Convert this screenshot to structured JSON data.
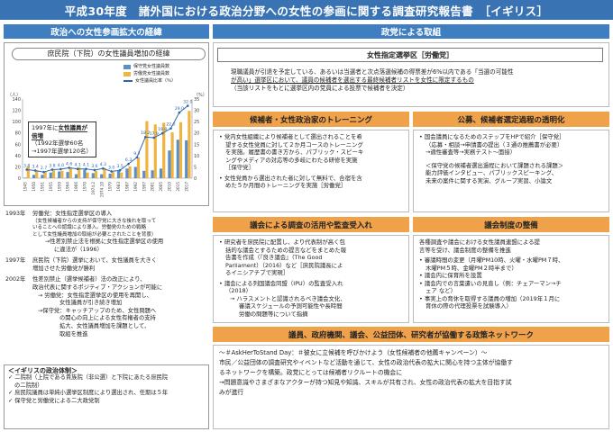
{
  "title": "平成30年度　諸外国における政治分野への女性の参画に関する調査研究報告書　［イギリス］",
  "left": {
    "header": "政治への女性参画拡大の経緯",
    "chart_title": "庶民院（下院）の女性議員増加の経緯",
    "callout": {
      "line1": "1997年に",
      "line1_hl": "女性議員が倍増",
      "line2": "（1992年選挙60名",
      "line3": "→1997年選挙120名）"
    },
    "timeline": [
      {
        "year": "1993年",
        "lines": [
          "労働党：女性指定選挙区の導入",
          "（女性候補者からの支持が保守党に大きな後れを取って",
          "いることへの認識により導入。労働党のための戦略",
          "として女性議員増加の取組が必要とされたことを背景）",
          "→性差別禁止法を根拠に女性指定選挙区の使用",
          "に違法が（1996）"
        ]
      },
      {
        "year": "1997年",
        "lines": [
          "庶民院（下院）選挙において、女性議員を大きく",
          "増加させた労働党が勝利"
        ]
      },
      {
        "year": "2002年",
        "lines": [
          "性差別禁止（選挙候補者）法の改正により、",
          "政治代表に関するポジティブ・アクションが可能に",
          "→ 労働党：女性指定選挙区の使用を再開し、",
          "女性議員が引き続き増加",
          "→保守党：キャッチアップのため、女性問題へ",
          "の関心の向上による女性有権者の支持",
          "拡大、女性議員増加を課題として、",
          "取組を推進"
        ]
      }
    ],
    "policy": {
      "heading": "＜イギリスの政治体制＞",
      "items": [
        "二院制（上院である貴族院（非公選）と下院にあたる庶民院",
        "の二院制）",
        "庶民院議員は単純小選挙区制度により選出され、任期は５年",
        "保守党と労働党による二大政党制"
      ]
    }
  },
  "right": {
    "header": "政党による取組",
    "section1": {
      "label": "女性指定選挙区［労働党］",
      "lines": [
        "現職議員が引退を予定している、あるいは当選者と次点落選候補の得票差が6%以内である「当選の可能性",
        "が高い」選挙区において、議員の候補者を選出する最終候補者リストを女性に限定するもの",
        "（当該リストをもとに選挙区内の党員による投票で候補者を決定）"
      ]
    },
    "section2": {
      "label": "候補者・女性政治家のトレーニング",
      "items": [
        [
          "党内女性組織により候補者として選出されることを希",
          "望する女性党員に対して２か月コースのトレーニング",
          "を実施。履歴書の書き方から、パブリック・スピーキ",
          "ングやメディアの対応等の多岐にわたる研修を実施",
          "［保守党］"
        ],
        [
          "女性党員から選出された者に対して無料で、合宿を含",
          "めた５か月間のトレーニングを実施［労働党］"
        ]
      ]
    },
    "section3": {
      "label": "公募、候補者選定過程の透明化",
      "items": [
        [
          "国会議員になるためのステップをHPで紹介［保守党］",
          "（応募・相談→申請書の提出（３通の推薦書が必要）",
          "→適性審査等→実務テスト〜面接）"
        ]
      ],
      "extra": [
        "＜保守党の候補者選出過程において課題される課題＞",
        "能力評価インタビュー、パブリックスピーキング、",
        "未来の案件に関する実演、グループ実習、小論文"
      ]
    },
    "section4": {
      "label": "議会による調査の活用や監査受入れ",
      "items": [
        [
          "研究者を庶民院に配置し、より代表制が高く包",
          "括的な議会とするための提言などをまとめた報",
          "告書を作成（『良き議会』（The Good",
          "Parliament）（2016）など［庶民院議長によ",
          "るイニシアチブで実現］"
        ],
        [
          "議会による列国議会同盟（IPU）の監査受入れ",
          "（2018）",
          "→ ハラスメントと認識されるべき議会文化、",
          "審議スケジュールの予測可能性や長時間",
          "労働の問題等について指摘"
        ]
      ]
    },
    "section5": {
      "label": "議会制度の整備",
      "intro": [
        "各種調査や議会における女性議員連盟による提",
        "言等を受け、議会制度の整備を推進"
      ],
      "items": [
        "審議時間の変更（月曜PM10時、火曜・水曜PM７時、",
        "木曜PM５時、金曜PM２時半まで）",
        "議会内に保育所を設置",
        "議会内での言葉遣いの見直し（例：チェアーマン→チ",
        "ェア など）",
        "事実上の育休を取得する議員の増加（2019年１月に",
        "育休の際の代理投票を試験導入）"
      ]
    },
    "section6": {
      "label": "議員、政府機関、議会、公益団体、研究者が協働する政策ネットワーク",
      "lines": [
        "〜＃AskHerToStand Day：＃彼女に立候補を呼びかけよう（女性候補者の他薦キャンペーン）〜",
        "市民／公益団体の調査研究やイベントなど活動を通じて、女性の政治代表の拡大に関心を持つ主体が協働す",
        "るネットワークを構築。政党にとっては候補者リクルートの機会に",
        "→問題意識やさまざまなアクターが持つ知見や知識、スキルが共有され、女性の政治代表の拡大を目指す試",
        "みが進行"
      ]
    }
  },
  "chart_data": {
    "type": "bar",
    "categories": [
      "1945",
      "1950",
      "1951",
      "1955",
      "1959",
      "1964",
      "1966",
      "1970",
      "1974.2",
      "1974.10",
      "1979",
      "1983",
      "1987",
      "1992",
      "1997",
      "2001",
      "2005",
      "2010",
      "2015",
      "2017"
    ],
    "series": [
      {
        "name": "保守党女性議員数",
        "values": [
          1,
          6,
          6,
          10,
          12,
          11,
          7,
          15,
          9,
          7,
          8,
          13,
          17,
          20,
          13,
          14,
          17,
          49,
          68,
          67
        ]
      },
      {
        "name": "労働党女性議員数",
        "values": [
          21,
          14,
          11,
          14,
          13,
          18,
          19,
          10,
          13,
          18,
          11,
          10,
          21,
          37,
          101,
          95,
          98,
          81,
          99,
          119
        ]
      },
      {
        "name": "女性議員比率（％）",
        "values": [
          3.8,
          3.4,
          2.7,
          3.8,
          4.0,
          4.6,
          4.1,
          4.1,
          3.6,
          4.3,
          3.0,
          3.5,
          6.3,
          9.2,
          18.2,
          17.9,
          19.8,
          22.0,
          29.0,
          32.0
        ]
      }
    ],
    "ylim_left": [
      0,
      140
    ],
    "ylim_right": [
      0,
      35
    ],
    "yticks_left": [
      0,
      20,
      40,
      60,
      80,
      100,
      120,
      140
    ],
    "yticks_right": [
      0,
      5,
      10,
      15,
      20,
      25,
      30,
      35
    ],
    "unit_left": "（人）",
    "unit_right": "（%）",
    "colors": {
      "conservative": "#5b8fc8",
      "labour": "#f0b440",
      "ratio_line": "#2a66b0"
    }
  }
}
